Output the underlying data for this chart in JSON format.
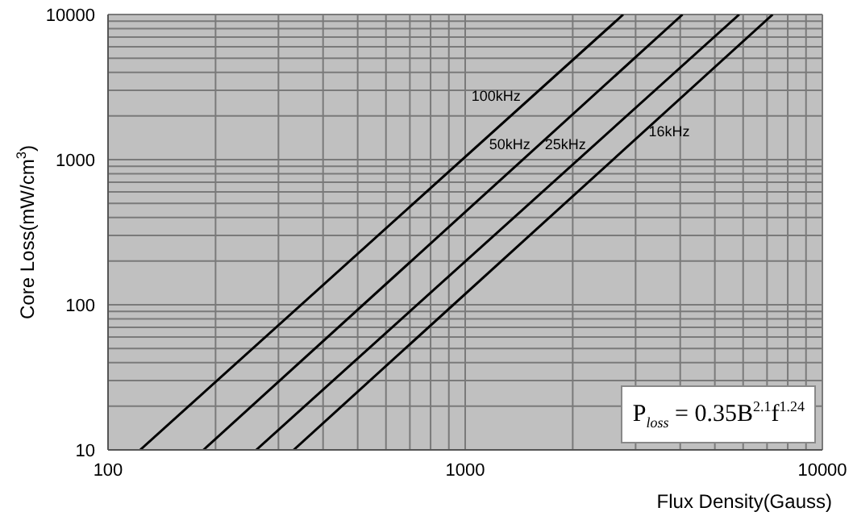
{
  "chart_data": {
    "type": "line",
    "xlabel": "Flux Density(Gauss)",
    "ylabel": "Core Loss(mW/cm$^{3}$)",
    "log": "xy",
    "grid": true,
    "xlim": [
      100,
      10000
    ],
    "xticks": [
      100,
      1000,
      10000
    ],
    "ylim": [
      10,
      10000
    ],
    "yticks": [
      10,
      100,
      1000,
      10000
    ],
    "marker": "none",
    "line_style": "solid",
    "legend": false,
    "series": [
      {
        "name": "100kHz",
        "color": "#000000",
        "x": [
          123,
          2770
        ],
        "values": [
          10,
          10000
        ]
      },
      {
        "name": "50kHz",
        "color": "#000000",
        "x": [
          185,
          4060
        ],
        "values": [
          10,
          10000
        ]
      },
      {
        "name": "25kHz",
        "color": "#000000",
        "x": [
          260,
          5850
        ],
        "values": [
          10,
          10000
        ]
      },
      {
        "name": "16kHz",
        "color": "#000000",
        "x": [
          331,
          7260
        ],
        "values": [
          10,
          10000
        ]
      }
    ],
    "annotations": [
      "P$_{loss}$ = 0.35B$^{2.1}$f$^{1.24}$"
    ]
  }
}
